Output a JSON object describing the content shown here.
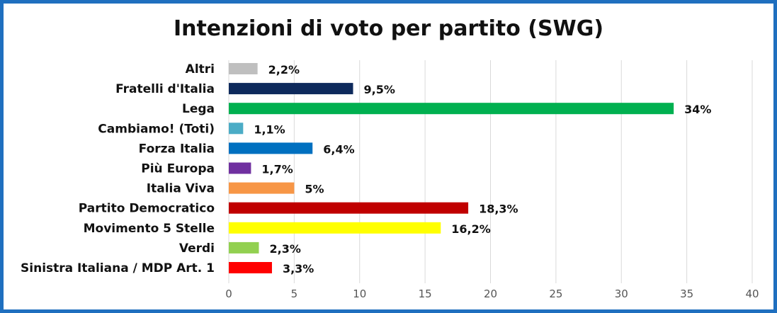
{
  "chart_data": {
    "type": "bar",
    "orientation": "horizontal",
    "title": "Intenzioni di voto per partito (SWG)",
    "xlabel": "",
    "ylabel": "",
    "xlim": [
      0,
      40
    ],
    "ticks": [
      "0",
      "5",
      "10",
      "15",
      "20",
      "25",
      "30",
      "35",
      "40"
    ],
    "tick_values": [
      0,
      5,
      10,
      15,
      20,
      25,
      30,
      35,
      40
    ],
    "grid": true,
    "legend": "none",
    "categories": [
      "Altri",
      "Fratelli d'Italia",
      "Lega",
      "Cambiamo! (Toti)",
      "Forza Italia",
      "Più Europa",
      "Italia Viva",
      "Partito Democratico",
      "Movimento 5 Stelle",
      "Verdi",
      "Sinistra Italiana / MDP Art. 1"
    ],
    "values": [
      2.2,
      9.5,
      34,
      1.1,
      6.4,
      1.7,
      5,
      18.3,
      16.2,
      2.3,
      3.3
    ],
    "value_labels": [
      "2,2%",
      "9,5%",
      "34%",
      "1,1%",
      "6,4%",
      "1,7%",
      "5%",
      "18,3%",
      "16,2%",
      "2,3%",
      "3,3%"
    ],
    "colors": [
      "#bfbfbf",
      "#0e2a5c",
      "#00b050",
      "#4bacc6",
      "#0070c0",
      "#7030a0",
      "#f79646",
      "#c00000",
      "#ffff00",
      "#92d050",
      "#ff0000"
    ]
  },
  "frame": {
    "border_color": "#1f6fbf"
  }
}
